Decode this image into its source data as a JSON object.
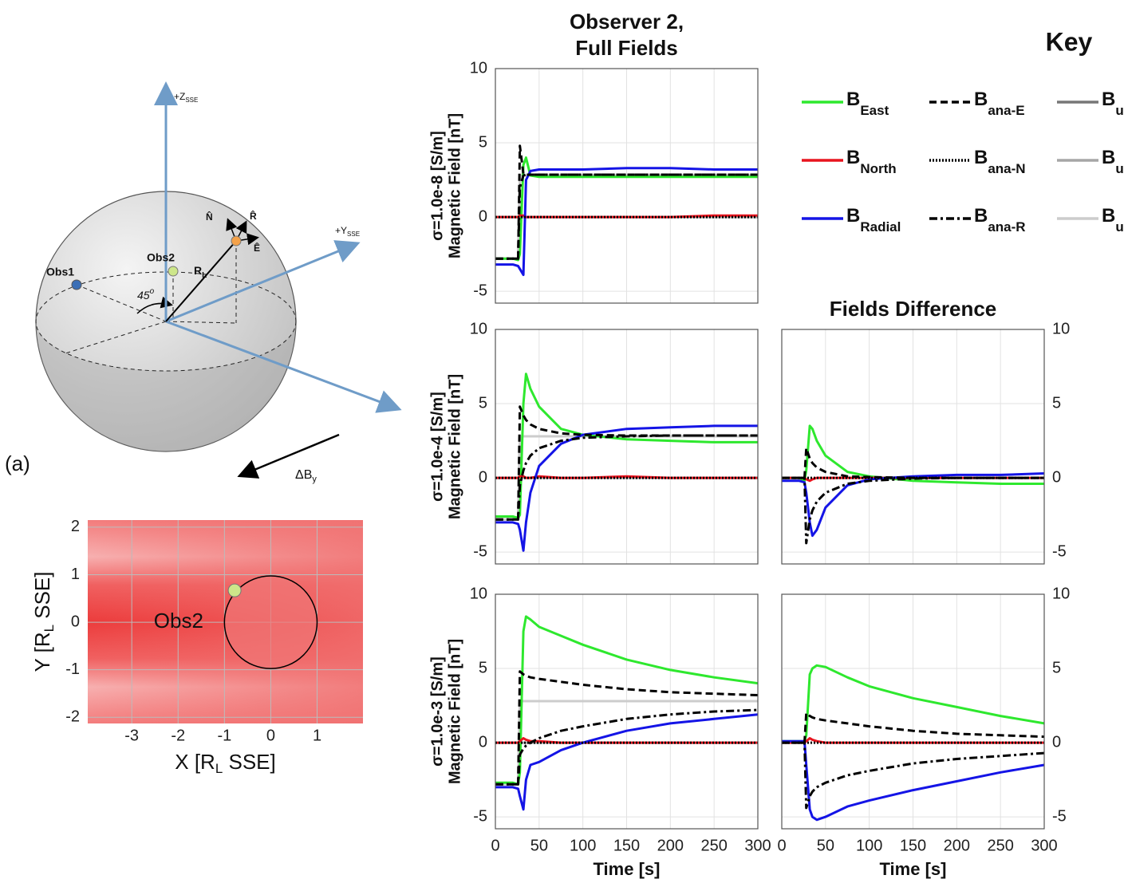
{
  "chart_data": [
    {
      "type": "line",
      "title": [
        "Observer 2,",
        "Full Fields"
      ],
      "ylabel": [
        "σ=1.0e-8 [S/m]",
        "Magnetic Field [nT]"
      ],
      "x": [
        0,
        20,
        26,
        28,
        32,
        35,
        40,
        50,
        75,
        100,
        150,
        200,
        250,
        300
      ],
      "xlim": [
        0,
        300
      ],
      "xticks": [
        0,
        50,
        100,
        150,
        200,
        250,
        300
      ],
      "ylim": [
        -5.8,
        10
      ],
      "yticks": [
        -5,
        0,
        5,
        10
      ],
      "grid": true,
      "series": [
        {
          "name": "B",
          "subscript": "East",
          "color": "#2ee82e",
          "dash": "solid",
          "values": [
            -2.8,
            -2.8,
            -2.9,
            -2.5,
            3.5,
            4.0,
            2.8,
            2.7,
            2.7,
            2.7,
            2.7,
            2.7,
            2.7,
            2.7
          ]
        },
        {
          "name": "B",
          "subscript": "North",
          "color": "#e8141e",
          "dash": "solid",
          "values": [
            0,
            0,
            0,
            0.1,
            0.1,
            0,
            0,
            0,
            0,
            0,
            0,
            0,
            0.1,
            0.1
          ]
        },
        {
          "name": "B",
          "subscript": "Radial",
          "color": "#1414e6",
          "dash": "solid",
          "values": [
            -3.2,
            -3.2,
            -3.3,
            -3.5,
            -3.9,
            2.5,
            3.1,
            3.2,
            3.2,
            3.2,
            3.3,
            3.3,
            3.2,
            3.2
          ]
        },
        {
          "name": "B",
          "subscript": "ana-E",
          "color": "#000000",
          "dash": "dashed",
          "values": [
            -2.8,
            -2.8,
            -2.8,
            4.8,
            2.9,
            2.85,
            2.85,
            2.85,
            2.85,
            2.85,
            2.85,
            2.85,
            2.85,
            2.85
          ]
        },
        {
          "name": "B",
          "subscript": "ana-N",
          "color": "#000000",
          "dash": "dotted",
          "values": [
            0,
            0,
            0,
            0,
            0,
            0,
            0,
            0,
            0,
            0,
            0,
            0,
            0,
            0
          ]
        },
        {
          "name": "B",
          "subscript": "ana-R",
          "color": "#000000",
          "dash": "dashdot",
          "values": [
            -2.8,
            -2.8,
            -2.8,
            2.0,
            2.8,
            2.85,
            2.85,
            2.85,
            2.85,
            2.85,
            2.85,
            2.85,
            2.85,
            2.85
          ]
        },
        {
          "name": "B",
          "subscript": "ups-E",
          "color": "#777777",
          "dash": "solid",
          "values": [
            -2.8,
            -2.8,
            -2.8,
            2.8,
            2.8,
            2.8,
            2.8,
            2.8,
            2.8,
            2.8,
            2.8,
            2.8,
            2.8,
            2.8
          ]
        },
        {
          "name": "B",
          "subscript": "ups-N",
          "color": "#a6a6a6",
          "dash": "solid",
          "values": [
            0,
            0,
            0,
            0,
            0,
            0,
            0,
            0,
            0,
            0,
            0,
            0,
            0,
            0
          ]
        },
        {
          "name": "B",
          "subscript": "ups-R",
          "color": "#cccccc",
          "dash": "solid",
          "values": [
            -2.8,
            -2.8,
            -2.8,
            2.8,
            2.8,
            2.8,
            2.8,
            2.8,
            2.8,
            2.8,
            2.8,
            2.8,
            2.8,
            2.8
          ]
        }
      ]
    },
    {
      "type": "line",
      "ylabel": [
        "σ=1.0e-4 [S/m]",
        "Magnetic Field [nT]"
      ],
      "x": [
        0,
        20,
        26,
        28,
        32,
        35,
        40,
        50,
        75,
        100,
        150,
        200,
        250,
        300
      ],
      "xlim": [
        0,
        300
      ],
      "xticks": [
        0,
        50,
        100,
        150,
        200,
        250,
        300
      ],
      "ylim": [
        -5.8,
        10
      ],
      "yticks": [
        -5,
        0,
        5,
        10
      ],
      "grid": true,
      "series": [
        {
          "name": "B",
          "subscript": "East",
          "color": "#2ee82e",
          "dash": "solid",
          "values": [
            -2.6,
            -2.6,
            -2.7,
            -2.5,
            5.0,
            7.0,
            6.0,
            4.8,
            3.3,
            2.9,
            2.6,
            2.5,
            2.4,
            2.4
          ]
        },
        {
          "name": "B",
          "subscript": "North",
          "color": "#e8141e",
          "dash": "solid",
          "values": [
            0,
            0,
            0,
            0.1,
            0.1,
            0,
            0,
            0.1,
            0,
            0,
            0.1,
            0,
            0,
            0
          ]
        },
        {
          "name": "B",
          "subscript": "Radial",
          "color": "#1414e6",
          "dash": "solid",
          "values": [
            -3.0,
            -3.0,
            -3.1,
            -3.5,
            -4.9,
            -3.0,
            -1.0,
            0.8,
            2.3,
            2.9,
            3.3,
            3.4,
            3.5,
            3.5
          ]
        },
        {
          "name": "B",
          "subscript": "ana-E",
          "color": "#000000",
          "dash": "dashed",
          "values": [
            -2.8,
            -2.8,
            -2.8,
            4.8,
            4.2,
            3.9,
            3.6,
            3.3,
            3.0,
            2.9,
            2.85,
            2.85,
            2.85,
            2.85
          ]
        },
        {
          "name": "B",
          "subscript": "ana-N",
          "color": "#000000",
          "dash": "dotted",
          "values": [
            0,
            0,
            0,
            0,
            0,
            0,
            0,
            0,
            0,
            0,
            0,
            0,
            0,
            0
          ]
        },
        {
          "name": "B",
          "subscript": "ana-R",
          "color": "#000000",
          "dash": "dashdot",
          "values": [
            -2.8,
            -2.8,
            -2.8,
            -0.5,
            0.5,
            1.0,
            1.5,
            2.0,
            2.5,
            2.7,
            2.8,
            2.85,
            2.85,
            2.85
          ]
        },
        {
          "name": "B",
          "subscript": "ups-E",
          "color": "#777777",
          "dash": "solid",
          "values": [
            -2.8,
            -2.8,
            -2.8,
            2.8,
            2.8,
            2.8,
            2.8,
            2.8,
            2.8,
            2.8,
            2.8,
            2.8,
            2.8,
            2.8
          ]
        },
        {
          "name": "B",
          "subscript": "ups-N",
          "color": "#a6a6a6",
          "dash": "solid",
          "values": [
            0,
            0,
            0,
            0,
            0,
            0,
            0,
            0,
            0,
            0,
            0,
            0,
            0,
            0
          ]
        },
        {
          "name": "B",
          "subscript": "ups-R",
          "color": "#cccccc",
          "dash": "solid",
          "values": [
            -2.8,
            -2.8,
            -2.8,
            2.8,
            2.8,
            2.8,
            2.8,
            2.8,
            2.8,
            2.8,
            2.8,
            2.8,
            2.8,
            2.8
          ]
        }
      ]
    },
    {
      "type": "line",
      "title": "Fields Difference",
      "yaxis_side": "right",
      "x": [
        0,
        20,
        26,
        28,
        32,
        35,
        40,
        50,
        75,
        100,
        150,
        200,
        250,
        300
      ],
      "xlim": [
        0,
        300
      ],
      "xticks": [
        0,
        50,
        100,
        150,
        200,
        250,
        300
      ],
      "ylim": [
        -5.8,
        10
      ],
      "yticks": [
        -5,
        0,
        5,
        10
      ],
      "grid": true,
      "series": [
        {
          "name": "B",
          "subscript": "East",
          "color": "#2ee82e",
          "dash": "solid",
          "values": [
            0,
            0,
            -0.2,
            0.5,
            3.5,
            3.3,
            2.5,
            1.5,
            0.4,
            0.1,
            -0.2,
            -0.3,
            -0.4,
            -0.4
          ]
        },
        {
          "name": "B",
          "subscript": "North",
          "color": "#e8141e",
          "dash": "solid",
          "values": [
            0,
            0,
            0,
            -0.1,
            -0.2,
            -0.1,
            0,
            0,
            0,
            0,
            0,
            0,
            0,
            0
          ]
        },
        {
          "name": "B",
          "subscript": "Radial",
          "color": "#1414e6",
          "dash": "solid",
          "values": [
            -0.2,
            -0.2,
            -0.3,
            -1.0,
            -3.0,
            -3.9,
            -3.5,
            -2.0,
            -0.5,
            -0.1,
            0.1,
            0.2,
            0.2,
            0.3
          ]
        },
        {
          "name": "B",
          "subscript": "ana-E",
          "color": "#000000",
          "dash": "dashed",
          "values": [
            0,
            0,
            0,
            2.0,
            1.3,
            1.0,
            0.7,
            0.4,
            0.1,
            0.05,
            0,
            0,
            0,
            0
          ]
        },
        {
          "name": "B",
          "subscript": "ana-N",
          "color": "#000000",
          "dash": "dotted",
          "values": [
            0,
            0,
            0,
            0,
            0,
            0,
            0,
            0,
            0,
            0,
            0,
            0,
            0,
            0
          ]
        },
        {
          "name": "B",
          "subscript": "ana-R",
          "color": "#000000",
          "dash": "dashdot",
          "values": [
            0,
            0,
            0,
            -4.4,
            -2.8,
            -2.2,
            -1.6,
            -1.0,
            -0.4,
            -0.2,
            -0.05,
            0,
            0,
            0
          ]
        }
      ]
    },
    {
      "type": "line",
      "ylabel": [
        "σ=1.0e-3 [S/m]",
        "Magnetic Field [nT]"
      ],
      "xlabel": "Time [s]",
      "x": [
        0,
        20,
        26,
        28,
        32,
        35,
        40,
        50,
        75,
        100,
        150,
        200,
        250,
        300
      ],
      "xlim": [
        0,
        300
      ],
      "xticks": [
        0,
        50,
        100,
        150,
        200,
        250,
        300
      ],
      "ylim": [
        -5.8,
        10
      ],
      "yticks": [
        -5,
        0,
        5,
        10
      ],
      "grid": true,
      "series": [
        {
          "name": "B",
          "subscript": "East",
          "color": "#2ee82e",
          "dash": "solid",
          "values": [
            -2.7,
            -2.7,
            -2.8,
            -2.0,
            7.5,
            8.5,
            8.3,
            7.8,
            7.2,
            6.6,
            5.6,
            4.9,
            4.4,
            4.0
          ]
        },
        {
          "name": "B",
          "subscript": "North",
          "color": "#e8141e",
          "dash": "solid",
          "values": [
            0,
            0,
            0,
            0.1,
            0.3,
            0.2,
            0.1,
            0.1,
            0,
            0,
            0,
            0,
            0,
            0
          ]
        },
        {
          "name": "B",
          "subscript": "Radial",
          "color": "#1414e6",
          "dash": "solid",
          "values": [
            -3.0,
            -3.0,
            -3.1,
            -3.6,
            -4.5,
            -2.5,
            -1.5,
            -1.3,
            -0.5,
            0,
            0.8,
            1.3,
            1.6,
            1.9
          ]
        },
        {
          "name": "B",
          "subscript": "ana-E",
          "color": "#000000",
          "dash": "dashed",
          "values": [
            -2.8,
            -2.8,
            -2.8,
            4.8,
            4.6,
            4.5,
            4.4,
            4.3,
            4.1,
            3.9,
            3.6,
            3.4,
            3.3,
            3.2
          ]
        },
        {
          "name": "B",
          "subscript": "ana-N",
          "color": "#000000",
          "dash": "dotted",
          "values": [
            0,
            0,
            0,
            0,
            0,
            0,
            0,
            0,
            0,
            0,
            0,
            0,
            0,
            0
          ]
        },
        {
          "name": "B",
          "subscript": "ana-R",
          "color": "#000000",
          "dash": "dashdot",
          "values": [
            -2.8,
            -2.8,
            -2.8,
            -0.8,
            -0.4,
            -0.2,
            0,
            0.3,
            0.8,
            1.1,
            1.6,
            1.9,
            2.1,
            2.2
          ]
        },
        {
          "name": "B",
          "subscript": "ups-E",
          "color": "#777777",
          "dash": "solid",
          "values": [
            -2.8,
            -2.8,
            -2.8,
            2.8,
            2.8,
            2.8,
            2.8,
            2.8,
            2.8,
            2.8,
            2.8,
            2.8,
            2.8,
            2.8
          ]
        },
        {
          "name": "B",
          "subscript": "ups-N",
          "color": "#a6a6a6",
          "dash": "solid",
          "values": [
            0,
            0,
            0,
            0,
            0,
            0,
            0,
            0,
            0,
            0,
            0,
            0,
            0,
            0
          ]
        },
        {
          "name": "B",
          "subscript": "ups-R",
          "color": "#cccccc",
          "dash": "solid",
          "values": [
            -2.8,
            -2.8,
            -2.8,
            2.8,
            2.8,
            2.8,
            2.8,
            2.8,
            2.8,
            2.8,
            2.8,
            2.8,
            2.8,
            2.8
          ]
        }
      ]
    },
    {
      "type": "line",
      "yaxis_side": "right",
      "xlabel": "Time [s]",
      "x": [
        0,
        20,
        26,
        28,
        32,
        35,
        40,
        50,
        75,
        100,
        150,
        200,
        250,
        300
      ],
      "xlim": [
        0,
        300
      ],
      "xticks": [
        0,
        50,
        100,
        150,
        200,
        250,
        300
      ],
      "ylim": [
        -5.8,
        10
      ],
      "yticks": [
        -5,
        0,
        5,
        10
      ],
      "grid": true,
      "series": [
        {
          "name": "B",
          "subscript": "East",
          "color": "#2ee82e",
          "dash": "solid",
          "values": [
            0.1,
            0.1,
            0.1,
            0.5,
            4.6,
            5.0,
            5.2,
            5.1,
            4.4,
            3.8,
            3.0,
            2.4,
            1.8,
            1.3
          ]
        },
        {
          "name": "B",
          "subscript": "North",
          "color": "#e8141e",
          "dash": "solid",
          "values": [
            0,
            0,
            0,
            0.1,
            0.3,
            0.2,
            0.1,
            0,
            0,
            0,
            0,
            0,
            0,
            0
          ]
        },
        {
          "name": "B",
          "subscript": "Radial",
          "color": "#1414e6",
          "dash": "solid",
          "values": [
            0.1,
            0.1,
            0.1,
            -1.5,
            -4.5,
            -5.0,
            -5.2,
            -5.0,
            -4.3,
            -3.9,
            -3.2,
            -2.6,
            -2.0,
            -1.5
          ]
        },
        {
          "name": "B",
          "subscript": "ana-E",
          "color": "#000000",
          "dash": "dashed",
          "values": [
            0,
            0,
            0,
            2.0,
            1.8,
            1.7,
            1.6,
            1.5,
            1.3,
            1.1,
            0.8,
            0.6,
            0.5,
            0.4
          ]
        },
        {
          "name": "B",
          "subscript": "ana-N",
          "color": "#000000",
          "dash": "dotted",
          "values": [
            0,
            0,
            0,
            0,
            0,
            0,
            0,
            0,
            0,
            0,
            0,
            0,
            0,
            0
          ]
        },
        {
          "name": "B",
          "subscript": "ana-R",
          "color": "#000000",
          "dash": "dashdot",
          "values": [
            0,
            0,
            0,
            -4.4,
            -3.6,
            -3.3,
            -3.0,
            -2.7,
            -2.2,
            -1.9,
            -1.4,
            -1.1,
            -0.9,
            -0.7
          ]
        }
      ]
    },
    {
      "type": "map",
      "xlim": [
        -3.95,
        1.99
      ],
      "ylim": [
        -2.13,
        2.15
      ],
      "xticks": [
        -3,
        -2,
        -1,
        0,
        1
      ],
      "yticks": [
        -2,
        -1,
        0,
        1,
        2
      ],
      "grid": true,
      "xlabel": {
        "text": "X [R",
        "sub": "L",
        "tail": " SSE]"
      },
      "ylabel": {
        "text": "Y [R",
        "sub": "L",
        "tail": " SSE]"
      },
      "annotation": "Obs2",
      "moon": {
        "center": [
          0,
          0
        ],
        "radius": 1
      },
      "observer": [
        -0.78,
        0.67
      ]
    }
  ],
  "key": {
    "title": "Key"
  },
  "diagram": {
    "panel_label": "(a)",
    "z_axis": "+Z",
    "z_sub": "SSE",
    "y_axis": "+Y",
    "y_sub": "SSE",
    "obs1": "Obs1",
    "obs2": "Obs2",
    "radius": "R",
    "radius_sub": "L",
    "angle": "45",
    "angle_sup": "o",
    "n_hat": "N̂",
    "r_hat": "R̂",
    "e_hat": "Ê",
    "delta_b": "ΔB",
    "delta_b_sub": "y"
  }
}
